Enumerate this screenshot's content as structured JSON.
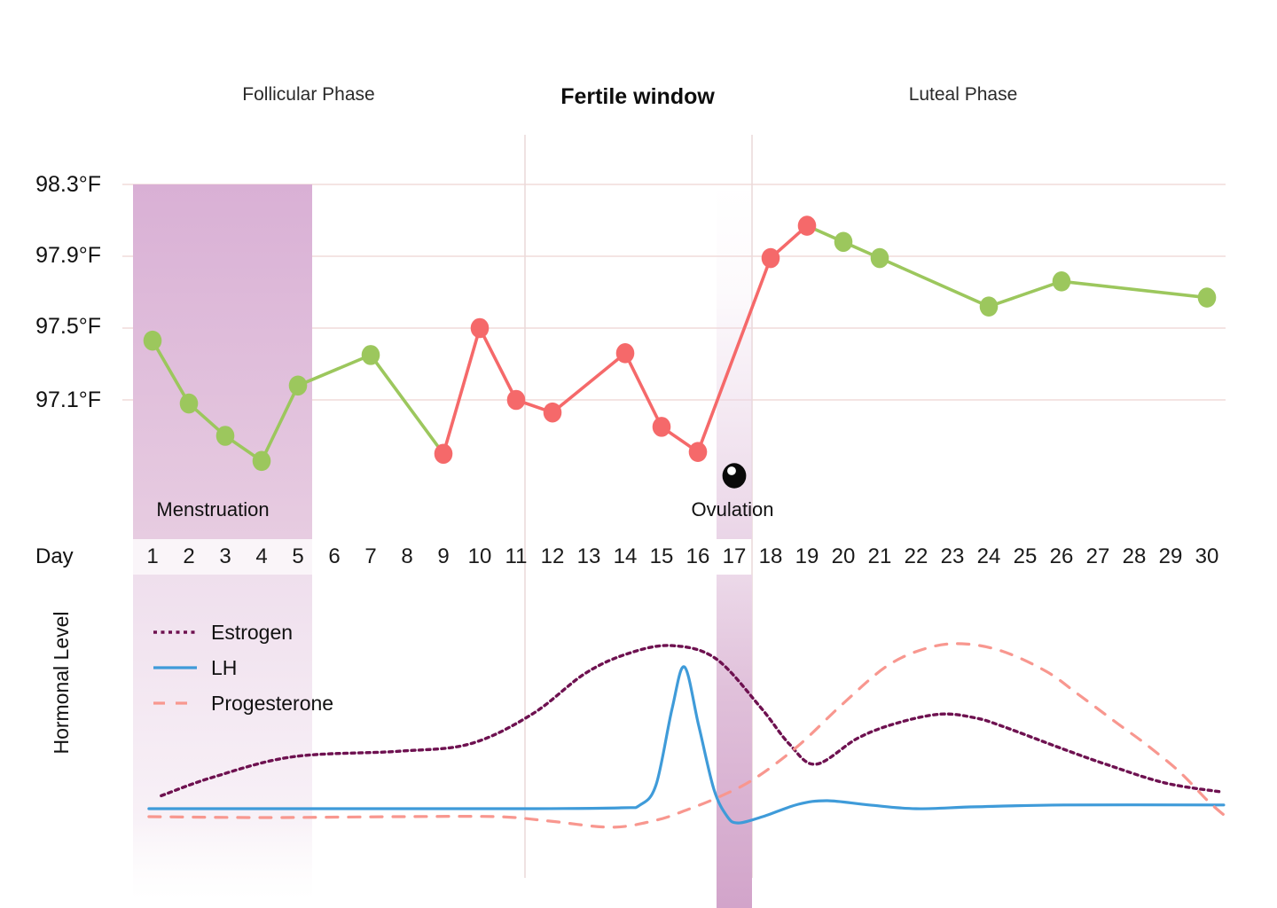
{
  "header": {
    "follicular_label": "Follicular Phase",
    "fertile_label": "Fertile window",
    "luteal_label": "Luteal Phase"
  },
  "axis": {
    "day_label": "Day",
    "days": [
      1,
      2,
      3,
      4,
      5,
      6,
      7,
      8,
      9,
      10,
      11,
      12,
      13,
      14,
      15,
      16,
      17,
      18,
      19,
      20,
      21,
      22,
      23,
      24,
      25,
      26,
      27,
      28,
      29,
      30
    ],
    "temp_ticks": [
      {
        "value": 98.3,
        "label": "98.3°F"
      },
      {
        "value": 97.9,
        "label": "97.9°F"
      },
      {
        "value": 97.5,
        "label": "97.5°F"
      },
      {
        "value": 97.1,
        "label": "97.1°F"
      }
    ],
    "hormone_axis_label": "Hormonal Level"
  },
  "annotations": {
    "menstruation_label": "Menstruation",
    "ovulation_label": "Ovulation"
  },
  "legend": [
    {
      "name": "Estrogen",
      "style": "dotted"
    },
    {
      "name": "LH",
      "style": "solid"
    },
    {
      "name": "Progesterone",
      "style": "dashed"
    }
  ],
  "colors": {
    "green": "#9cc75d",
    "red": "#f5696a",
    "estrogen": "#6e1150",
    "lh": "#3f9bd9",
    "progesterone": "#f8978f",
    "grid": "#f3e1df",
    "guide": "#ead9d9",
    "text": "#1a1a1a",
    "band_menstruation_top": "#d9b0d5",
    "band_menstruation_bottom": "#e7cce1",
    "band_ovulation_bottom": "#d2a4ca",
    "marker_black": "#0a0a0a"
  },
  "chart_data": [
    {
      "type": "line",
      "name": "basal-body-temperature",
      "x_axis": {
        "label": "Day",
        "range": [
          1,
          30
        ]
      },
      "y_axis": {
        "unit": "°F",
        "ticks": [
          98.3,
          97.9,
          97.5,
          97.1
        ]
      },
      "points": [
        {
          "day": 1,
          "temp": 97.43,
          "color": "green"
        },
        {
          "day": 2,
          "temp": 97.08,
          "color": "green"
        },
        {
          "day": 3,
          "temp": 96.9,
          "color": "green"
        },
        {
          "day": 4,
          "temp": 96.76,
          "color": "green"
        },
        {
          "day": 5,
          "temp": 97.18,
          "color": "green"
        },
        {
          "day": 7,
          "temp": 97.35,
          "color": "green"
        },
        {
          "day": 9,
          "temp": 96.8,
          "color": "red"
        },
        {
          "day": 10,
          "temp": 97.5,
          "color": "red"
        },
        {
          "day": 11,
          "temp": 97.1,
          "color": "red"
        },
        {
          "day": 12,
          "temp": 97.03,
          "color": "red"
        },
        {
          "day": 14,
          "temp": 97.36,
          "color": "red"
        },
        {
          "day": 15,
          "temp": 96.95,
          "color": "red"
        },
        {
          "day": 16,
          "temp": 96.81,
          "color": "red"
        },
        {
          "day": 18,
          "temp": 97.89,
          "color": "red"
        },
        {
          "day": 19,
          "temp": 98.07,
          "color": "red"
        },
        {
          "day": 20,
          "temp": 97.98,
          "color": "green"
        },
        {
          "day": 21,
          "temp": 97.89,
          "color": "green"
        },
        {
          "day": 24,
          "temp": 97.62,
          "color": "green"
        },
        {
          "day": 26,
          "temp": 97.76,
          "color": "green"
        },
        {
          "day": 30,
          "temp": 97.67,
          "color": "green"
        }
      ],
      "segment_colors": [
        "green",
        "green",
        "green",
        "green",
        "green",
        "green",
        "red",
        "red",
        "red",
        "red",
        "red",
        "red",
        "red",
        "red",
        "green",
        "green",
        "green",
        "green",
        "green"
      ],
      "regions": [
        {
          "label": "Menstruation",
          "day_start": 1,
          "day_end": 5
        },
        {
          "label": "Fertile window",
          "day_start": 11.2,
          "day_end": 17.5
        },
        {
          "label": "Ovulation",
          "day": 17
        }
      ]
    },
    {
      "type": "line",
      "name": "hormone-levels",
      "y_axis_label": "Hormonal Level",
      "level_scale": [
        0,
        1
      ],
      "series": [
        {
          "name": "Estrogen",
          "style": "dotted",
          "points": [
            [
              1.24,
              0.18
            ],
            [
              2.66,
              0.28
            ],
            [
              4.85,
              0.39
            ],
            [
              7.78,
              0.42
            ],
            [
              9.73,
              0.46
            ],
            [
              11.44,
              0.62
            ],
            [
              12.9,
              0.84
            ],
            [
              14.12,
              0.95
            ],
            [
              15.29,
              0.99
            ],
            [
              16.49,
              0.92
            ],
            [
              17.71,
              0.66
            ],
            [
              18.51,
              0.46
            ],
            [
              19.24,
              0.35
            ],
            [
              20.39,
              0.49
            ],
            [
              21.44,
              0.57
            ],
            [
              22.66,
              0.62
            ],
            [
              23.63,
              0.6
            ],
            [
              24.44,
              0.55
            ],
            [
              26.07,
              0.43
            ],
            [
              27.22,
              0.35
            ],
            [
              28.83,
              0.25
            ],
            [
              30.41,
              0.2
            ]
          ]
        },
        {
          "name": "LH",
          "style": "solid",
          "points": [
            [
              0.9,
              0.11
            ],
            [
              6.56,
              0.11
            ],
            [
              11.44,
              0.11
            ],
            [
              13.88,
              0.115
            ],
            [
              14.41,
              0.13
            ],
            [
              14.85,
              0.24
            ],
            [
              15.29,
              0.65
            ],
            [
              15.63,
              0.875
            ],
            [
              16.02,
              0.56
            ],
            [
              16.44,
              0.215
            ],
            [
              16.8,
              0.07
            ],
            [
              17.1,
              0.033
            ],
            [
              17.78,
              0.067
            ],
            [
              18.76,
              0.134
            ],
            [
              19.56,
              0.153
            ],
            [
              20.71,
              0.13
            ],
            [
              22,
              0.11
            ],
            [
              23.63,
              0.12
            ],
            [
              26.07,
              0.13
            ],
            [
              30.46,
              0.13
            ]
          ]
        },
        {
          "name": "Progesterone",
          "style": "dashed",
          "points": [
            [
              0.9,
              0.067
            ],
            [
              4.12,
              0.062
            ],
            [
              7.78,
              0.067
            ],
            [
              10.46,
              0.067
            ],
            [
              11.93,
              0.043
            ],
            [
              13.63,
              0.01
            ],
            [
              14.85,
              0.048
            ],
            [
              15.71,
              0.105
            ],
            [
              16.56,
              0.172
            ],
            [
              17.54,
              0.27
            ],
            [
              18.76,
              0.45
            ],
            [
              19.98,
              0.675
            ],
            [
              21.2,
              0.88
            ],
            [
              22.29,
              0.976
            ],
            [
              23.27,
              1.0
            ],
            [
              24.37,
              0.96
            ],
            [
              25.59,
              0.85
            ],
            [
              26.44,
              0.73
            ],
            [
              27.54,
              0.57
            ],
            [
              28.34,
              0.455
            ],
            [
              29.24,
              0.31
            ],
            [
              30.02,
              0.153
            ],
            [
              30.46,
              0.077
            ]
          ]
        }
      ]
    }
  ]
}
